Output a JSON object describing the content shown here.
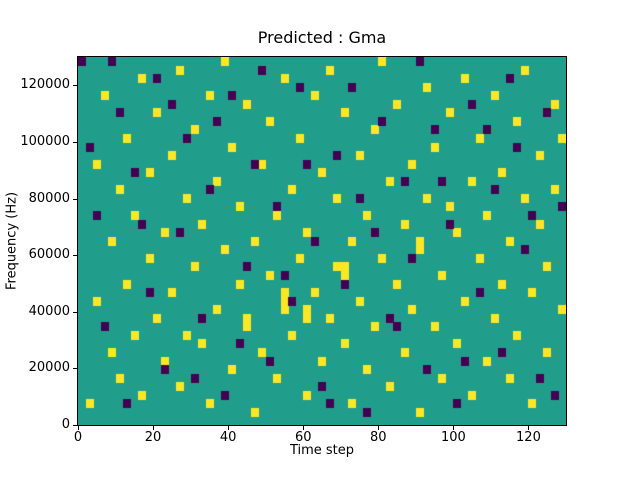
{
  "chart_data": {
    "type": "heatmap",
    "title": "Predicted : Gma",
    "xlabel": "Time step",
    "ylabel": "Frequency (Hz)",
    "x_ticks": [
      0,
      20,
      40,
      60,
      80,
      100,
      120
    ],
    "y_ticks": [
      0,
      20000,
      40000,
      60000,
      80000,
      100000,
      120000
    ],
    "xlim": [
      0,
      130
    ],
    "ylim": [
      0,
      130000
    ],
    "grid": {
      "cols": 65,
      "rows": 43
    },
    "legend": "none",
    "colors": {
      "background": "#219e8b",
      "high": "#fde725",
      "low": "#440154",
      "axes": "#000000",
      "figure_bg": "#ffffff"
    },
    "cells_high": [
      [
        1,
        2
      ],
      [
        2,
        14
      ],
      [
        2,
        30
      ],
      [
        3,
        38
      ],
      [
        4,
        8
      ],
      [
        4,
        21
      ],
      [
        5,
        27
      ],
      [
        5,
        5
      ],
      [
        6,
        16
      ],
      [
        6,
        33
      ],
      [
        7,
        10
      ],
      [
        7,
        24
      ],
      [
        8,
        40
      ],
      [
        8,
        3
      ],
      [
        9,
        19
      ],
      [
        9,
        29
      ],
      [
        10,
        12
      ],
      [
        10,
        36
      ],
      [
        11,
        7
      ],
      [
        11,
        22
      ],
      [
        12,
        31
      ],
      [
        12,
        15
      ],
      [
        13,
        4
      ],
      [
        13,
        41
      ],
      [
        14,
        26
      ],
      [
        14,
        10
      ],
      [
        15,
        18
      ],
      [
        15,
        34
      ],
      [
        16,
        9
      ],
      [
        16,
        23
      ],
      [
        17,
        38
      ],
      [
        17,
        2
      ],
      [
        18,
        13
      ],
      [
        18,
        28
      ],
      [
        19,
        20
      ],
      [
        19,
        42
      ],
      [
        20,
        6
      ],
      [
        20,
        32
      ],
      [
        21,
        16
      ],
      [
        21,
        25
      ],
      [
        22,
        11
      ],
      [
        22,
        37
      ],
      [
        23,
        1
      ],
      [
        23,
        21
      ],
      [
        24,
        30
      ],
      [
        24,
        8
      ],
      [
        25,
        17
      ],
      [
        25,
        35
      ],
      [
        26,
        24
      ],
      [
        26,
        5
      ],
      [
        27,
        13
      ],
      [
        27,
        40
      ],
      [
        28,
        27
      ],
      [
        28,
        10
      ],
      [
        29,
        19
      ],
      [
        29,
        33
      ],
      [
        30,
        3
      ],
      [
        30,
        22
      ],
      [
        31,
        15
      ],
      [
        31,
        38
      ],
      [
        32,
        7
      ],
      [
        32,
        29
      ],
      [
        33,
        12
      ],
      [
        33,
        41
      ],
      [
        34,
        18
      ],
      [
        34,
        26
      ],
      [
        35,
        9
      ],
      [
        35,
        36
      ],
      [
        36,
        2
      ],
      [
        36,
        21
      ],
      [
        37,
        31
      ],
      [
        37,
        14
      ],
      [
        38,
        6
      ],
      [
        38,
        24
      ],
      [
        39,
        34
      ],
      [
        39,
        11
      ],
      [
        40,
        19
      ],
      [
        40,
        42
      ],
      [
        41,
        28
      ],
      [
        41,
        4
      ],
      [
        42,
        16
      ],
      [
        42,
        37
      ],
      [
        43,
        8
      ],
      [
        43,
        23
      ],
      [
        44,
        30
      ],
      [
        44,
        13
      ],
      [
        45,
        20
      ],
      [
        45,
        1
      ],
      [
        46,
        26
      ],
      [
        46,
        39
      ],
      [
        47,
        11
      ],
      [
        47,
        32
      ],
      [
        48,
        5
      ],
      [
        48,
        17
      ],
      [
        49,
        25
      ],
      [
        49,
        36
      ],
      [
        50,
        9
      ],
      [
        50,
        22
      ],
      [
        51,
        14
      ],
      [
        51,
        40
      ],
      [
        52,
        28
      ],
      [
        52,
        3
      ],
      [
        53,
        19
      ],
      [
        53,
        33
      ],
      [
        54,
        7
      ],
      [
        54,
        24
      ],
      [
        55,
        12
      ],
      [
        55,
        38
      ],
      [
        56,
        29
      ],
      [
        56,
        16
      ],
      [
        57,
        5
      ],
      [
        57,
        21
      ],
      [
        58,
        35
      ],
      [
        58,
        10
      ],
      [
        59,
        26
      ],
      [
        59,
        41
      ],
      [
        60,
        15
      ],
      [
        60,
        2
      ],
      [
        61,
        23
      ],
      [
        61,
        31
      ],
      [
        62,
        8
      ],
      [
        62,
        18
      ],
      [
        63,
        27
      ],
      [
        63,
        37
      ],
      [
        64,
        13
      ],
      [
        64,
        33
      ],
      [
        35,
        17
      ],
      [
        35,
        18
      ],
      [
        30,
        12
      ],
      [
        30,
        13
      ],
      [
        22,
        12
      ],
      [
        45,
        21
      ],
      [
        27,
        14
      ],
      [
        27,
        15
      ]
    ],
    "cells_low": [
      [
        0,
        42
      ],
      [
        2,
        24
      ],
      [
        3,
        11
      ],
      [
        5,
        36
      ],
      [
        6,
        2
      ],
      [
        7,
        29
      ],
      [
        9,
        15
      ],
      [
        10,
        40
      ],
      [
        11,
        6
      ],
      [
        13,
        22
      ],
      [
        14,
        33
      ],
      [
        16,
        12
      ],
      [
        17,
        27
      ],
      [
        19,
        3
      ],
      [
        20,
        38
      ],
      [
        22,
        18
      ],
      [
        23,
        30
      ],
      [
        25,
        7
      ],
      [
        26,
        25
      ],
      [
        28,
        14
      ],
      [
        29,
        39
      ],
      [
        31,
        21
      ],
      [
        32,
        4
      ],
      [
        34,
        31
      ],
      [
        35,
        16
      ],
      [
        37,
        26
      ],
      [
        38,
        1
      ],
      [
        40,
        35
      ],
      [
        41,
        12
      ],
      [
        43,
        28
      ],
      [
        44,
        19
      ],
      [
        46,
        6
      ],
      [
        47,
        34
      ],
      [
        49,
        23
      ],
      [
        50,
        2
      ],
      [
        52,
        37
      ],
      [
        53,
        15
      ],
      [
        55,
        27
      ],
      [
        56,
        8
      ],
      [
        58,
        32
      ],
      [
        59,
        20
      ],
      [
        61,
        5
      ],
      [
        62,
        36
      ],
      [
        64,
        25
      ],
      [
        1,
        32
      ],
      [
        4,
        42
      ],
      [
        8,
        23
      ],
      [
        12,
        37
      ],
      [
        15,
        5
      ],
      [
        18,
        35
      ],
      [
        21,
        9
      ],
      [
        24,
        41
      ],
      [
        27,
        17
      ],
      [
        30,
        30
      ],
      [
        33,
        2
      ],
      [
        36,
        39
      ],
      [
        39,
        22
      ],
      [
        42,
        11
      ],
      [
        45,
        42
      ],
      [
        48,
        28
      ],
      [
        51,
        7
      ],
      [
        54,
        34
      ],
      [
        57,
        40
      ],
      [
        60,
        24
      ],
      [
        63,
        3
      ]
    ]
  }
}
